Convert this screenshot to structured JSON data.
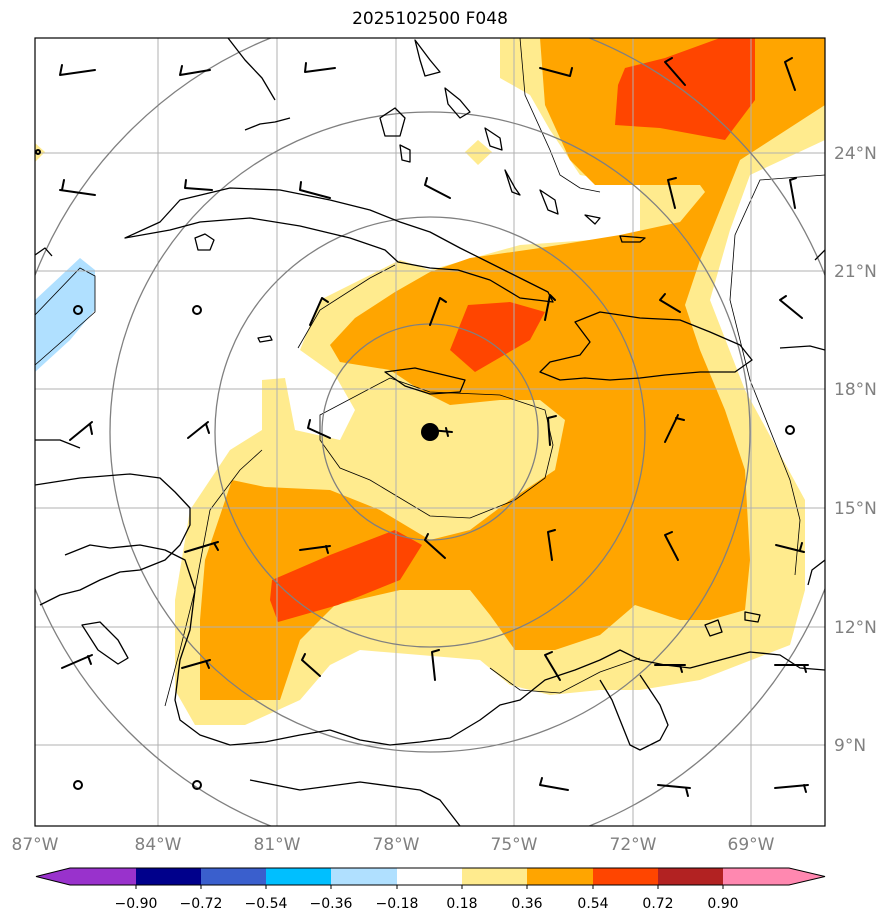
{
  "title": "2025102500 F048",
  "map": {
    "lon_range": [
      -87,
      -67
    ],
    "lat_range": [
      7,
      27
    ],
    "lon_ticks": [
      "87°W",
      "84°W",
      "81°W",
      "78°W",
      "75°W",
      "72°W",
      "69°W"
    ],
    "lat_ticks": [
      "24°N",
      "21°N",
      "18°N",
      "15°N",
      "12°N",
      "9°N"
    ],
    "grid": true,
    "storm_center": {
      "lon": -77.0,
      "lat": 16.9,
      "icon": "filled-circle-icon"
    },
    "range_rings": "concentric circles around storm center"
  },
  "colorbar": {
    "orientation": "horizontal",
    "extend": "both",
    "tick_labels": [
      "−0.90",
      "−0.72",
      "−0.54",
      "−0.36",
      "−0.18",
      "0.18",
      "0.36",
      "0.54",
      "0.72",
      "0.90"
    ],
    "colors": [
      "#9932cc",
      "#00008b",
      "#3a5fcd",
      "#00bfff",
      "#b0e0ff",
      "#ffffff",
      "#ffeb8e",
      "#ffa500",
      "#ff4500",
      "#b22222",
      "#ff88b0"
    ]
  }
}
